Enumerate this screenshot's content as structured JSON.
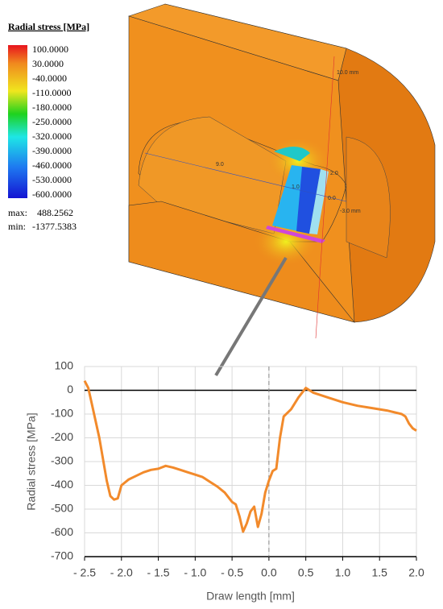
{
  "legend": {
    "title": "Radial stress [MPa]",
    "levels": [
      "100.0000",
      "30.0000",
      "-40.0000",
      "-110.0000",
      "-180.0000",
      "-250.0000",
      "-320.0000",
      "-390.0000",
      "-460.0000",
      "-530.0000",
      "-600.0000"
    ],
    "max_label": "max:",
    "max": "488.2562",
    "min_label": "min:",
    "min": "-1377.5383"
  },
  "model_labels": [
    "10.0 mm",
    "9.0",
    "-3.0 mm",
    "2.0",
    "1.0",
    "0.0"
  ],
  "chart_data": {
    "type": "line",
    "x_label": "Draw length [mm]",
    "y_label": "Radial stress [MPa]",
    "x": [
      -2.5,
      -2.45,
      -2.4,
      -2.3,
      -2.2,
      -2.15,
      -2.1,
      -2.05,
      -2.0,
      -1.9,
      -1.8,
      -1.7,
      -1.6,
      -1.5,
      -1.4,
      -1.3,
      -1.2,
      -1.1,
      -1.0,
      -0.9,
      -0.8,
      -0.7,
      -0.6,
      -0.5,
      -0.45,
      -0.4,
      -0.35,
      -0.3,
      -0.25,
      -0.2,
      -0.15,
      -0.1,
      -0.05,
      0.0,
      0.05,
      0.1,
      0.15,
      0.2,
      0.3,
      0.4,
      0.5,
      0.6,
      0.7,
      0.8,
      1.0,
      1.2,
      1.4,
      1.6,
      1.8,
      1.85,
      1.9,
      1.95,
      2.0
    ],
    "values": [
      40,
      10,
      -60,
      -200,
      -380,
      -445,
      -460,
      -455,
      -400,
      -375,
      -360,
      -345,
      -335,
      -330,
      -318,
      -325,
      -335,
      -345,
      -355,
      -365,
      -385,
      -405,
      -430,
      -470,
      -480,
      -530,
      -595,
      -560,
      -510,
      -490,
      -575,
      -520,
      -430,
      -380,
      -340,
      -330,
      -200,
      -110,
      -80,
      -30,
      10,
      -10,
      -20,
      -30,
      -50,
      -65,
      -75,
      -85,
      -100,
      -110,
      -140,
      -160,
      -170
    ],
    "color": "#f28a2b",
    "xlim": [
      -2.5,
      2.0
    ],
    "xticks": [
      {
        "value": -2.5,
        "label": "- 2.5"
      },
      {
        "value": -2.0,
        "label": "- 2.0"
      },
      {
        "value": -1.5,
        "label": "- 1.5"
      },
      {
        "value": -1.0,
        "label": "- 1.0"
      },
      {
        "value": -0.5,
        "label": "- 0.5"
      },
      {
        "value": 0,
        "label": "0.0"
      },
      0.5,
      {
        "value": 1,
        "label": "1.0"
      },
      1.5,
      {
        "value": 2,
        "label": "2.0"
      }
    ],
    "ylim": [
      -700,
      100
    ],
    "yticks": [
      100,
      0,
      -100,
      -200,
      -300,
      -400,
      -500,
      -600,
      -700
    ],
    "grid": true,
    "vline_x": 0,
    "hline_y": 0
  }
}
